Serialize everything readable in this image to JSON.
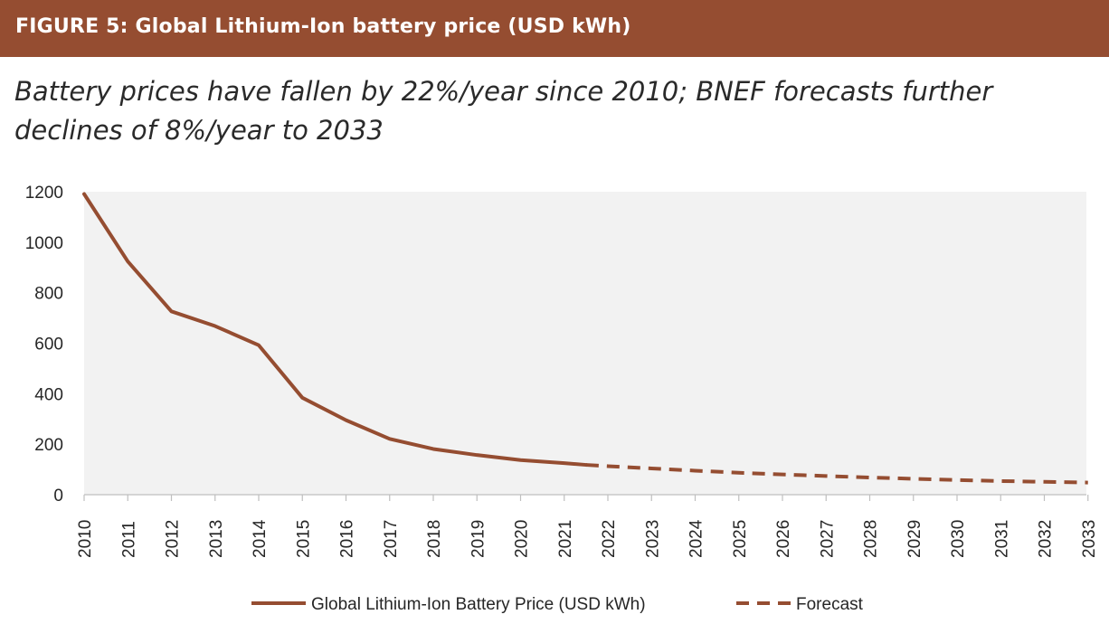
{
  "header": {
    "figure_title": "FIGURE 5: Global Lithium-Ion battery price (USD kWh)",
    "subtitle": "Battery prices have fallen by 22%/year since 2010; BNEF forecasts further declines of 8%/year to 2033"
  },
  "colors": {
    "banner": "#954d31",
    "series": "#954d31",
    "plot_background": "#f2f2f2"
  },
  "chart_data": {
    "type": "line",
    "title": "",
    "xlabel": "",
    "ylabel": "",
    "x": [
      "2010",
      "2011",
      "2012",
      "2013",
      "2014",
      "2015",
      "2016",
      "2017",
      "2018",
      "2019",
      "2020",
      "2021",
      "2022",
      "2023",
      "2024",
      "2025",
      "2026",
      "2027",
      "2028",
      "2029",
      "2030",
      "2031",
      "2032",
      "2033"
    ],
    "ylim": [
      0,
      1200
    ],
    "yticks": [
      0,
      200,
      400,
      600,
      800,
      1000,
      1200
    ],
    "grid": false,
    "legend_position": "bottom",
    "series": [
      {
        "name": "Global Lithium-Ion Battery Price (USD kWh)",
        "style": "solid",
        "x": [
          "2010",
          "2011",
          "2012",
          "2013",
          "2014",
          "2015",
          "2016",
          "2017",
          "2018",
          "2019",
          "2020",
          "2021",
          "2021.5"
        ],
        "values": [
          1191,
          924,
          726,
          668,
          592,
          384,
          295,
          221,
          181,
          157,
          137,
          125,
          118
        ]
      },
      {
        "name": "Forecast",
        "style": "dashed",
        "x": [
          "2021.5",
          "2022",
          "2023",
          "2024",
          "2025",
          "2026",
          "2027",
          "2028",
          "2029",
          "2030",
          "2031",
          "2032",
          "2033"
        ],
        "values": [
          118,
          113,
          104,
          95,
          87,
          80,
          74,
          68,
          63,
          58,
          54,
          51,
          48
        ]
      }
    ]
  }
}
